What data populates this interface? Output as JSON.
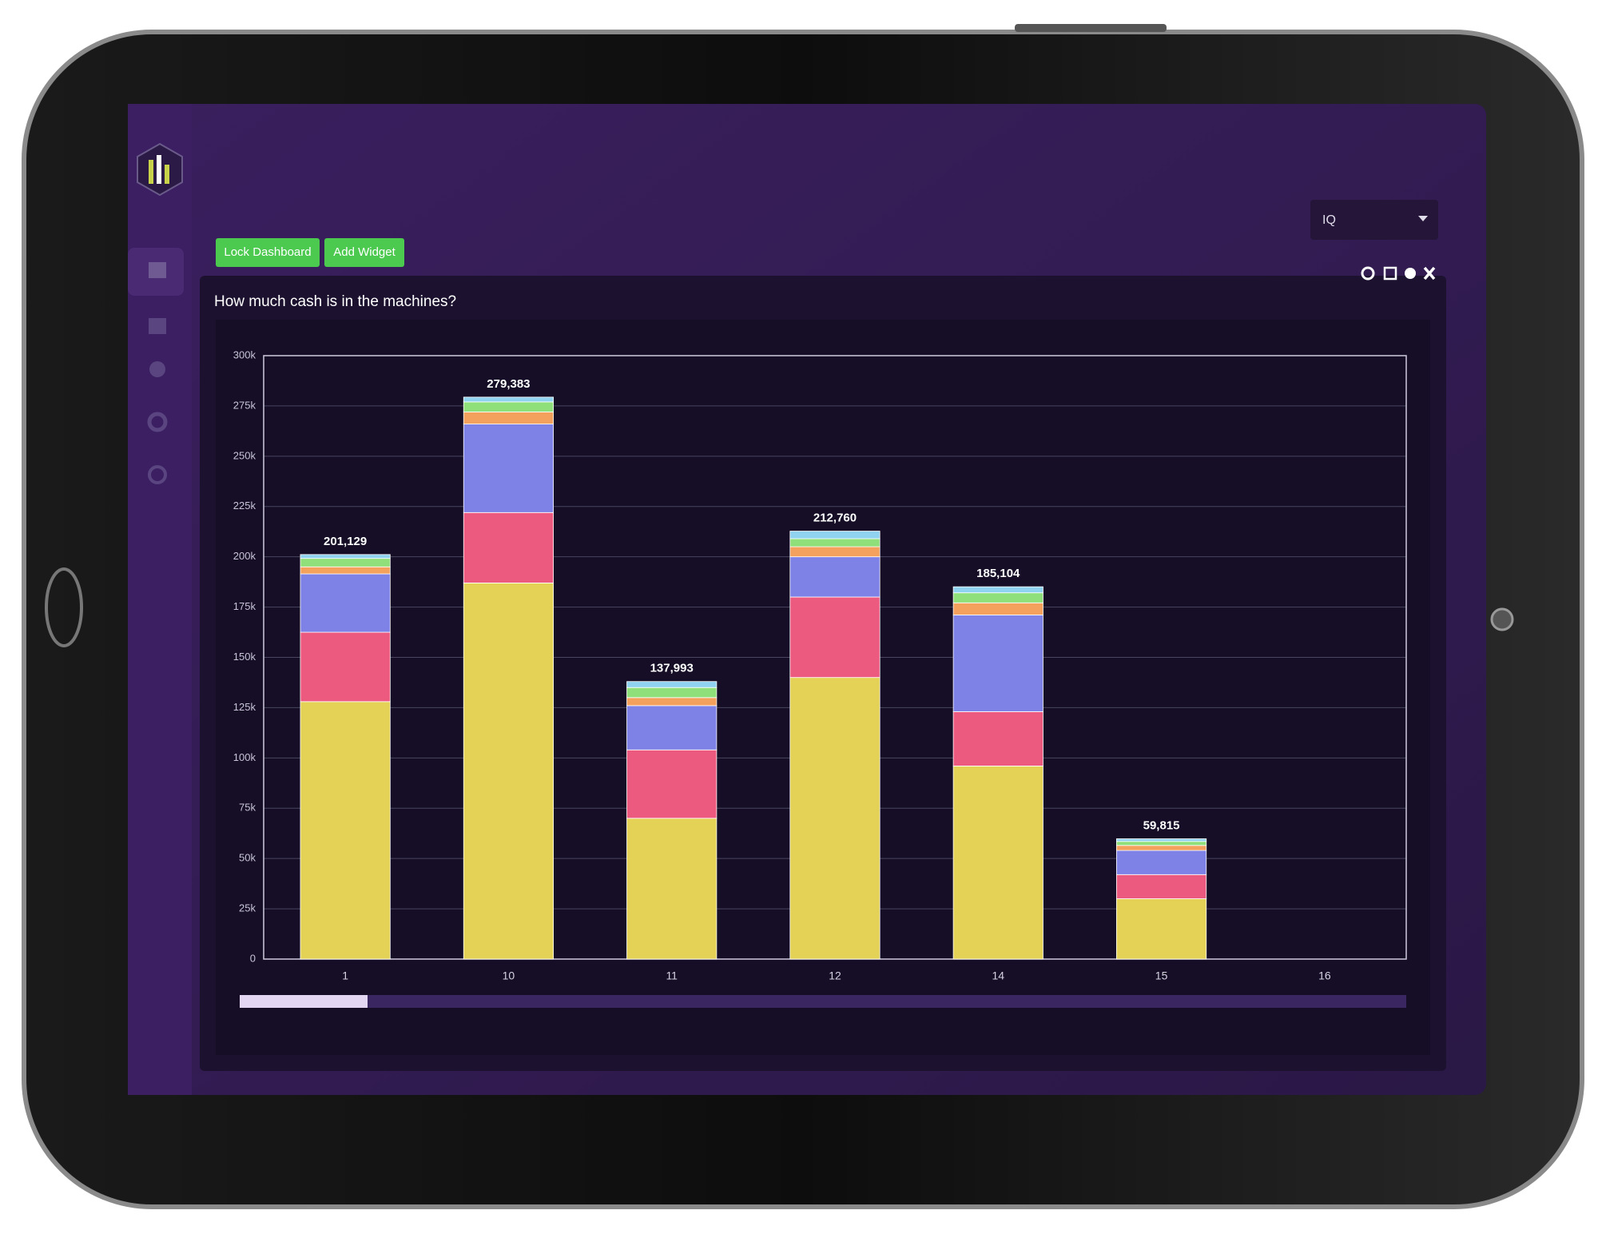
{
  "app": {
    "buttons": [
      "Lock Dashboard",
      "Add Widget"
    ],
    "dropdown": "IQ"
  },
  "chart_data": {
    "type": "stacked_bar",
    "title": "How much cash is in the machines?",
    "categories": [
      "1",
      "10",
      "11",
      "12",
      "14",
      "15",
      "16"
    ],
    "series": [
      {
        "color": "#e3d255",
        "values": [
          128000,
          187000,
          70000,
          140000,
          96000,
          30000,
          null
        ]
      },
      {
        "color": "#ec5a80",
        "values": [
          34500,
          35000,
          34000,
          40000,
          27000,
          12000,
          null
        ]
      },
      {
        "color": "#7e82e6",
        "values": [
          29000,
          44000,
          22000,
          20000,
          48104,
          12000,
          null
        ]
      },
      {
        "color": "#f4a15d",
        "values": [
          3500,
          6000,
          4000,
          5000,
          6000,
          2500,
          null
        ]
      },
      {
        "color": "#8fe07a",
        "values": [
          4200,
          5000,
          5000,
          4000,
          5000,
          2000,
          null
        ]
      },
      {
        "color": "#8fd3f0",
        "values": [
          1929,
          2383,
          2993,
          3760,
          3000,
          1315,
          null
        ]
      }
    ],
    "totals": [
      201129,
      279383,
      137993,
      212760,
      185104,
      59815,
      null
    ],
    "total_labels": [
      "201,129",
      "279,383",
      "137,993",
      "212,760",
      "185,104",
      "59,815",
      null
    ],
    "ylim": [
      0,
      300000
    ],
    "yticks": [
      0,
      {
        "value": 25000,
        "label": "25k"
      },
      {
        "value": 50000,
        "label": "50k"
      },
      {
        "value": 75000,
        "label": "75k"
      },
      {
        "value": 100000,
        "label": "100k"
      },
      {
        "value": 125000,
        "label": "125k"
      },
      {
        "value": 150000,
        "label": "150k"
      },
      {
        "value": 175000,
        "label": "175k"
      },
      {
        "value": 200000,
        "label": "200k"
      },
      {
        "value": 225000,
        "label": "225k"
      },
      {
        "value": 250000,
        "label": "250k"
      },
      {
        "value": 275000,
        "label": "275k"
      },
      {
        "value": 300000,
        "label": "300k"
      }
    ],
    "grid": true
  }
}
